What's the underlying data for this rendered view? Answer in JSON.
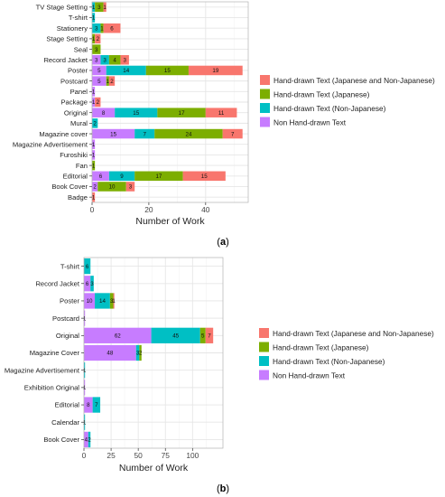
{
  "colors": {
    "Hand-drawn Text (Japanese and Non-Japanese)": "#F8766D",
    "Hand-drawn Text (Japanese)": "#7CAE00",
    "Hand-drawn Text (Non-Japanese)": "#00BFC4",
    "Non Hand-drawn Text": "#C77CFF",
    "panel_bg": "#ffffff",
    "grid_major": "#e6e6e6",
    "grid_minor": "#f2f2f2",
    "panel_border": "#b3b3b3"
  },
  "stack_order": [
    "Non Hand-drawn Text",
    "Hand-drawn Text (Non-Japanese)",
    "Hand-drawn Text (Japanese)",
    "Hand-drawn Text (Japanese and Non-Japanese)"
  ],
  "chart_data": [
    {
      "type": "bar",
      "orientation": "horizontal",
      "stacked": true,
      "panel_label": "(a)",
      "panel_letter": "a",
      "xlabel": "Number of Work",
      "xlim": [
        0,
        55
      ],
      "xticks": [
        0,
        20,
        40
      ],
      "grid": true,
      "legend_placement": "right",
      "legend": [
        "Hand-drawn Text (Japanese and Non-Japanese)",
        "Hand-drawn Text (Japanese)",
        "Hand-drawn Text (Non-Japanese)",
        "Non Hand-drawn Text"
      ],
      "categories": [
        "TV Stage Setting",
        "T-shirt",
        "Stationery",
        "Stage Setting",
        "Seal",
        "Record Jacket",
        "Poster",
        "Postcard",
        "Panel",
        "Package",
        "Original",
        "Mural",
        "Magazine cover",
        "Magazine Advertisement",
        "Furoshiki",
        "Fan",
        "Editorial",
        "Book Cover",
        "Badge"
      ],
      "series": [
        {
          "name": "Non Hand-drawn Text",
          "values": [
            0,
            0,
            0,
            0,
            0,
            3,
            5,
            5,
            1,
            1,
            8,
            0,
            15,
            1,
            1,
            0,
            6,
            2,
            0
          ]
        },
        {
          "name": "Hand-drawn Text (Non-Japanese)",
          "values": [
            1,
            1,
            3,
            0,
            0,
            3,
            14,
            0,
            0,
            0,
            15,
            2,
            7,
            0,
            0,
            0,
            9,
            0,
            0
          ]
        },
        {
          "name": "Hand-drawn Text (Japanese)",
          "values": [
            3,
            0,
            1,
            1,
            3,
            4,
            15,
            1,
            0,
            0,
            17,
            0,
            24,
            0,
            0,
            1,
            17,
            10,
            0
          ]
        },
        {
          "name": "Hand-drawn Text (Japanese and Non-Japanese)",
          "values": [
            1,
            0,
            6,
            2,
            0,
            3,
            19,
            2,
            0,
            2,
            11,
            0,
            7,
            0,
            0,
            0,
            15,
            3,
            1
          ]
        }
      ]
    },
    {
      "type": "bar",
      "orientation": "horizontal",
      "stacked": true,
      "panel_label": "(b)",
      "panel_letter": "b",
      "xlabel": "Number of Work",
      "xlim": [
        0,
        128
      ],
      "xticks": [
        0,
        25,
        50,
        75,
        100
      ],
      "grid": true,
      "legend_placement": "right",
      "legend": [
        "Hand-drawn Text (Japanese and Non-Japanese)",
        "Hand-drawn Text (Japanese)",
        "Hand-drawn Text (Non-Japanese)",
        "Non Hand-drawn Text"
      ],
      "categories": [
        "T-shirt",
        "Record Jacket",
        "Poster",
        "Postcard",
        "Original",
        "Magazine Cover",
        "Magazine Advertisement",
        "Exhibition Original",
        "Editorial",
        "Calendar",
        "Book Cover"
      ],
      "series": [
        {
          "name": "Non Hand-drawn Text",
          "values": [
            0,
            6,
            10,
            1,
            62,
            48,
            0,
            1,
            8,
            0,
            4
          ]
        },
        {
          "name": "Hand-drawn Text (Non-Japanese)",
          "values": [
            6,
            3,
            14,
            0,
            45,
            3,
            1,
            0,
            7,
            1,
            2
          ]
        },
        {
          "name": "Hand-drawn Text (Japanese)",
          "values": [
            0,
            0,
            3,
            0,
            5,
            2,
            0,
            0,
            0,
            0,
            0
          ]
        },
        {
          "name": "Hand-drawn Text (Japanese and Non-Japanese)",
          "values": [
            0,
            0,
            1,
            0,
            7,
            0,
            0,
            0,
            0,
            0,
            0
          ]
        }
      ]
    }
  ]
}
